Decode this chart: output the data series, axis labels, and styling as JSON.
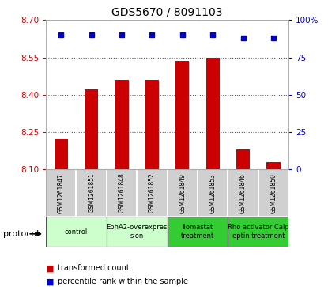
{
  "title": "GDS5670 / 8091103",
  "samples": [
    "GSM1261847",
    "GSM1261851",
    "GSM1261848",
    "GSM1261852",
    "GSM1261849",
    "GSM1261853",
    "GSM1261846",
    "GSM1261850"
  ],
  "bar_values": [
    8.22,
    8.42,
    8.46,
    8.46,
    8.535,
    8.55,
    8.18,
    8.13
  ],
  "bar_bottom": 8.1,
  "percentile_values": [
    90,
    90,
    90,
    90,
    90,
    90,
    88,
    88
  ],
  "ylim_left": [
    8.1,
    8.7
  ],
  "ylim_right": [
    0,
    100
  ],
  "yticks_left": [
    8.1,
    8.25,
    8.4,
    8.55,
    8.7
  ],
  "yticks_right": [
    0,
    25,
    50,
    75,
    100
  ],
  "bar_color": "#cc0000",
  "dot_color": "#0000cc",
  "protocols": [
    {
      "label": "control",
      "start": 0,
      "end": 2,
      "color": "#ccffcc"
    },
    {
      "label": "EphA2-overexpres\nsion",
      "start": 2,
      "end": 4,
      "color": "#ccffcc"
    },
    {
      "label": "Ilomastat\ntreatment",
      "start": 4,
      "end": 6,
      "color": "#33cc33"
    },
    {
      "label": "Rho activator Calp\neptin treatment",
      "start": 6,
      "end": 8,
      "color": "#33cc33"
    }
  ],
  "protocol_label": "protocol",
  "legend_bar": "transformed count",
  "legend_dot": "percentile rank within the sample",
  "grid_color": "#555555",
  "tick_color_left": "#cc0000",
  "tick_color_right": "#0000cc",
  "bar_width": 0.45,
  "dot_size": 25,
  "sample_bg": "#d0d0d0",
  "spine_color": "#aaaaaa"
}
